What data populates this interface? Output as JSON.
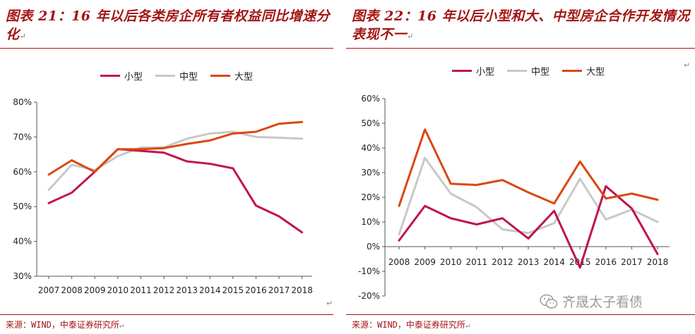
{
  "left": {
    "title": "图表 21：16 年以后各类房企所有者权益同比增速分化",
    "source": "来源：WIND，中泰证券研究所"
  },
  "right": {
    "title": "图表 22：16 年以后小型和大、中型房企合作开发情况表现不一",
    "source": "来源：WIND，中泰证券研究所"
  },
  "para_mark": "↵",
  "watermark": {
    "text": "齐晟太子看债",
    "icon": "wechat-icon"
  },
  "colors": {
    "small": "#c0144c",
    "medium": "#c8c8c8",
    "large": "#d9480f",
    "title": "#a31515"
  },
  "chart_data": [
    {
      "type": "line",
      "title": "",
      "xlabel": "",
      "ylabel": "",
      "ylim": [
        30,
        80
      ],
      "yticks": [
        30,
        40,
        50,
        60,
        70,
        80
      ],
      "ytick_labels": [
        "30%",
        "40%",
        "50%",
        "60%",
        "70%",
        "80%"
      ],
      "grid": false,
      "legend_position": "top",
      "categories": [
        "2007",
        "2008",
        "2009",
        "2010",
        "2011",
        "2012",
        "2013",
        "2014",
        "2015",
        "2016",
        "2017",
        "2018"
      ],
      "series": [
        {
          "name": "小型",
          "color": "#c0144c",
          "values": [
            51,
            54,
            60,
            66.5,
            66,
            65.5,
            63,
            62.3,
            61,
            50.3,
            47.2,
            42.6
          ]
        },
        {
          "name": "中型",
          "color": "#c8c8c8",
          "values": [
            54.8,
            62,
            60.5,
            64.5,
            67,
            67,
            69.5,
            71,
            71.5,
            70,
            69.8,
            69.5
          ]
        },
        {
          "name": "大型",
          "color": "#d9480f",
          "values": [
            59.2,
            63.3,
            60,
            66.5,
            66.5,
            66.8,
            68,
            69,
            71,
            71.5,
            73.8,
            74.3
          ]
        }
      ]
    },
    {
      "type": "line",
      "title": "",
      "xlabel": "",
      "ylabel": "",
      "ylim": [
        -20,
        60
      ],
      "yticks": [
        -20,
        -10,
        0,
        10,
        20,
        30,
        40,
        50,
        60
      ],
      "ytick_labels": [
        "-20%",
        "-10%",
        "0%",
        "10%",
        "20%",
        "30%",
        "40%",
        "50%",
        "60%"
      ],
      "grid": false,
      "legend_position": "top",
      "categories": [
        "2008",
        "2009",
        "2010",
        "2011",
        "2012",
        "2013",
        "2014",
        "2015",
        "2016",
        "2017",
        "2018"
      ],
      "series": [
        {
          "name": "小型",
          "color": "#c0144c",
          "values": [
            2.5,
            16.5,
            11.5,
            9,
            11.5,
            3.3,
            14.5,
            -8.5,
            24.5,
            15.5,
            -3
          ]
        },
        {
          "name": "中型",
          "color": "#c8c8c8",
          "values": [
            5,
            36,
            21.5,
            16,
            7,
            5.5,
            9.5,
            27.5,
            11,
            15,
            10
          ]
        },
        {
          "name": "大型",
          "color": "#d9480f",
          "values": [
            16.5,
            47.5,
            25.5,
            25,
            27,
            22,
            17.5,
            34.5,
            19.5,
            21.5,
            19
          ]
        }
      ]
    }
  ]
}
